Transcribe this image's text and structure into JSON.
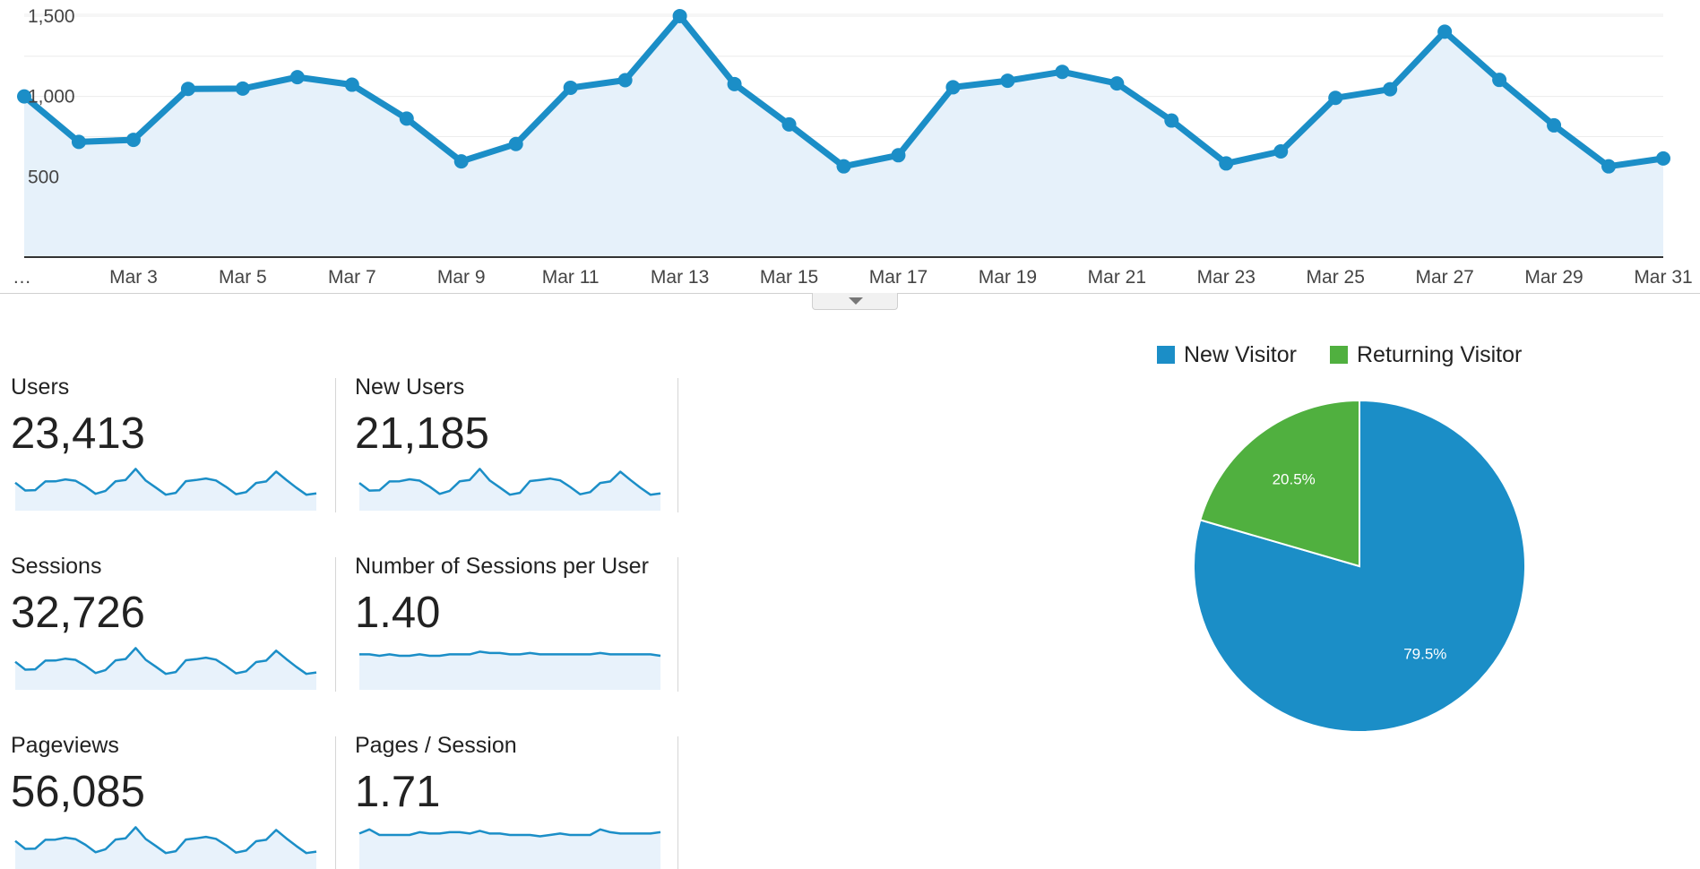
{
  "chart_data": {
    "type": "line",
    "x_labels": [
      "…",
      "Mar 3",
      "Mar 5",
      "Mar 7",
      "Mar 9",
      "Mar 11",
      "Mar 13",
      "Mar 15",
      "Mar 17",
      "Mar 19",
      "Mar 21",
      "Mar 23",
      "Mar 25",
      "Mar 27",
      "Mar 29",
      "Mar 31"
    ],
    "yticks": [
      "1,500",
      "1,000",
      "500"
    ],
    "ytick_values": [
      1500,
      1000,
      500
    ],
    "ylim": [
      0,
      1550
    ],
    "grid": true,
    "series": [
      {
        "values": [
          1000,
          717,
          730,
          1047,
          1049,
          1120,
          1073,
          862,
          596,
          704,
          1054,
          1101,
          1500,
          1077,
          826,
          565,
          634,
          1057,
          1098,
          1153,
          1081,
          850,
          583,
          658,
          991,
          1045,
          1403,
          1103,
          820,
          565,
          614
        ],
        "color": "#1b8ec7"
      }
    ]
  },
  "metrics": [
    {
      "label": "Users",
      "value": "23,413",
      "spark": [
        1000,
        717,
        730,
        1047,
        1049,
        1120,
        1073,
        862,
        596,
        704,
        1054,
        1101,
        1500,
        1077,
        826,
        565,
        634,
        1057,
        1098,
        1153,
        1081,
        850,
        583,
        658,
        991,
        1045,
        1403,
        1103,
        820,
        565,
        614
      ]
    },
    {
      "label": "New Users",
      "value": "21,185",
      "spark": [
        900,
        650,
        660,
        950,
        955,
        1020,
        975,
        780,
        540,
        640,
        955,
        1000,
        1360,
        980,
        750,
        515,
        575,
        960,
        1000,
        1045,
        985,
        770,
        530,
        600,
        900,
        950,
        1270,
        1000,
        745,
        515,
        560
      ]
    },
    {
      "label": "Sessions",
      "value": "32,726",
      "spark": [
        1400,
        1000,
        1020,
        1460,
        1465,
        1560,
        1500,
        1200,
        830,
        985,
        1470,
        1540,
        2090,
        1500,
        1150,
        790,
        885,
        1475,
        1530,
        1610,
        1510,
        1185,
        815,
        920,
        1385,
        1460,
        1960,
        1540,
        1145,
        790,
        860
      ]
    },
    {
      "label": "Number of Sessions per User",
      "value": "1.40",
      "spark": [
        1.4,
        1.4,
        1.39,
        1.4,
        1.39,
        1.39,
        1.4,
        1.39,
        1.39,
        1.4,
        1.4,
        1.4,
        1.42,
        1.41,
        1.41,
        1.4,
        1.4,
        1.41,
        1.4,
        1.4,
        1.4,
        1.4,
        1.4,
        1.4,
        1.41,
        1.4,
        1.4,
        1.4,
        1.4,
        1.4,
        1.39
      ]
    },
    {
      "label": "Pageviews",
      "value": "56,085",
      "spark": [
        2400,
        1710,
        1740,
        2500,
        2510,
        2680,
        2560,
        2060,
        1420,
        1680,
        2520,
        2630,
        3580,
        2570,
        1970,
        1350,
        1510,
        2520,
        2620,
        2750,
        2580,
        2030,
        1390,
        1570,
        2370,
        2500,
        3350,
        2630,
        1960,
        1350,
        1470
      ]
    },
    {
      "label": "Pages / Session",
      "value": "1.71",
      "spark": [
        1.71,
        1.74,
        1.7,
        1.7,
        1.7,
        1.7,
        1.72,
        1.71,
        1.71,
        1.72,
        1.72,
        1.71,
        1.73,
        1.71,
        1.71,
        1.7,
        1.7,
        1.7,
        1.69,
        1.7,
        1.71,
        1.7,
        1.7,
        1.7,
        1.74,
        1.72,
        1.71,
        1.71,
        1.71,
        1.71,
        1.72
      ]
    }
  ],
  "pie": {
    "type": "pie",
    "slices": [
      {
        "name": "New Visitor",
        "value": 79.5,
        "label": "79.5%",
        "color": "#1b8ec7"
      },
      {
        "name": "Returning Visitor",
        "value": 20.5,
        "label": "20.5%",
        "color": "#50b03f"
      }
    ]
  },
  "colors": {
    "accent": "#1b8ec7",
    "area_fill": "#e6f1fa",
    "spark_fill": "#e8f2fb"
  }
}
